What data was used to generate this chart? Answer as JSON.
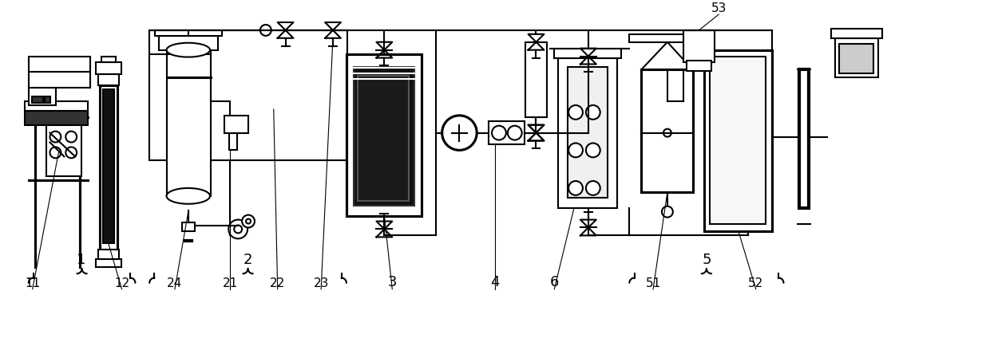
{
  "bg_color": "#ffffff",
  "line_color": "#000000",
  "lw": 1.5,
  "lw_thin": 0.8,
  "fig_w": 12.4,
  "fig_h": 4.34,
  "dpi": 100
}
